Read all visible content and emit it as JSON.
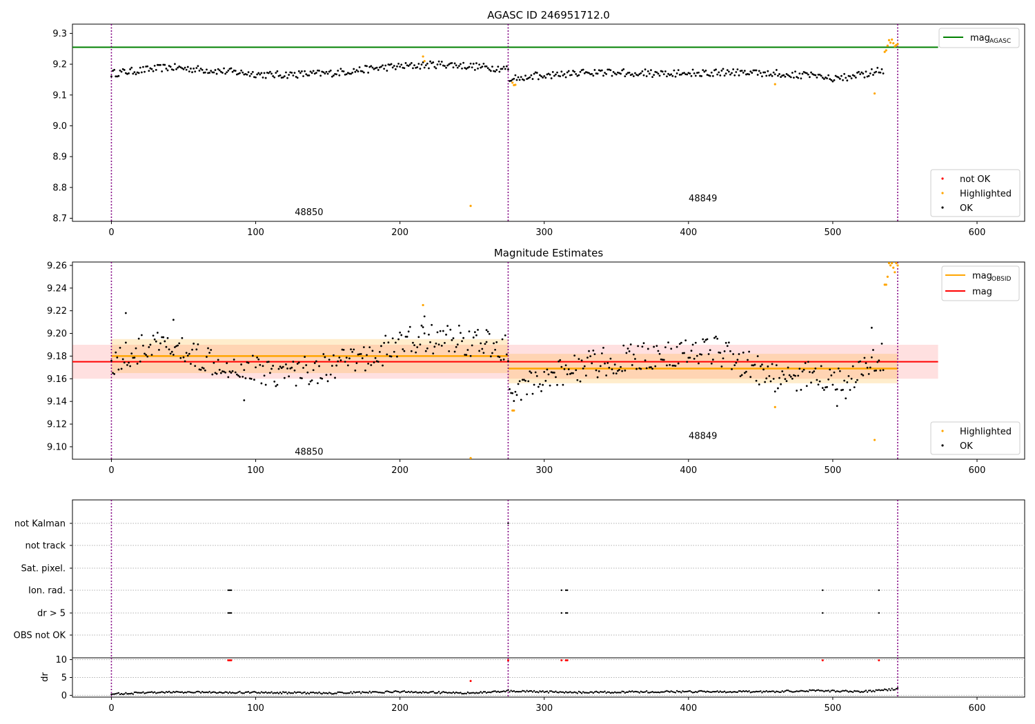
{
  "chart_data": [
    {
      "type": "scatter",
      "title": "AGASC ID 246951712.0",
      "xlim": [
        -27,
        633
      ],
      "ylim": [
        8.69,
        9.33
      ],
      "xticks": [
        0,
        100,
        200,
        300,
        400,
        500,
        600
      ],
      "xtick_labels": [
        "0",
        "100",
        "200",
        "300",
        "400",
        "500",
        "600"
      ],
      "yticks": [
        8.7,
        8.8,
        8.9,
        9.0,
        9.1,
        9.2,
        9.3
      ],
      "ytick_labels": [
        "8.7",
        "8.8",
        "8.9",
        "9.0",
        "9.1",
        "9.2",
        "9.3"
      ],
      "obsid_boundaries": [
        0,
        275,
        545
      ],
      "segment_labels": [
        {
          "text": "48850",
          "x": 137,
          "y": 8.71
        },
        {
          "text": "48849",
          "x": 410,
          "y": 8.755
        }
      ],
      "mag_agasc_line": {
        "value": 9.255,
        "x_range": [
          -27,
          573
        ],
        "color": "#008000"
      },
      "segments": [
        {
          "x_start": 0,
          "x_end": 275,
          "anchors_x": [
            0,
            40,
            70,
            110,
            150,
            190,
            230,
            275
          ],
          "anchors_y": [
            9.17,
            9.19,
            9.18,
            9.165,
            9.17,
            9.19,
            9.2,
            9.185
          ],
          "noise": 0.012
        },
        {
          "x_start": 276,
          "x_end": 535,
          "anchors_x": [
            276,
            330,
            380,
            440,
            480,
            500,
            535
          ],
          "anchors_y": [
            9.155,
            9.175,
            9.17,
            9.175,
            9.165,
            9.15,
            9.18
          ],
          "noise": 0.012
        }
      ],
      "highlighted_points": [
        [
          216,
          9.225
        ],
        [
          217,
          9.21
        ],
        [
          249,
          8.74
        ],
        [
          278,
          9.14
        ],
        [
          279,
          9.132
        ],
        [
          280,
          9.133
        ],
        [
          460,
          9.135
        ],
        [
          529,
          9.105
        ],
        [
          536,
          9.24
        ],
        [
          537,
          9.245
        ],
        [
          538,
          9.26
        ],
        [
          539,
          9.278
        ],
        [
          540,
          9.27
        ],
        [
          541,
          9.28
        ],
        [
          542,
          9.268
        ],
        [
          543,
          9.258
        ],
        [
          544,
          9.262
        ],
        [
          545,
          9.265
        ]
      ],
      "legend_lines": [
        {
          "label": "mag",
          "sub": "AGASC",
          "color": "#008000"
        }
      ],
      "legend_points": [
        {
          "label": "not OK",
          "color": "#ff0000"
        },
        {
          "label": "Highlighted",
          "color": "#ffa500"
        },
        {
          "label": "OK",
          "color": "#000000"
        }
      ]
    },
    {
      "type": "scatter",
      "title": "Magnitude Estimates",
      "xlim": [
        -27,
        633
      ],
      "ylim": [
        9.089,
        9.263
      ],
      "xticks": [
        0,
        100,
        200,
        300,
        400,
        500,
        600
      ],
      "xtick_labels": [
        "0",
        "100",
        "200",
        "300",
        "400",
        "500",
        "600"
      ],
      "yticks": [
        9.1,
        9.12,
        9.14,
        9.16,
        9.18,
        9.2,
        9.22,
        9.24,
        9.26
      ],
      "ytick_labels": [
        "9.10",
        "9.12",
        "9.14",
        "9.16",
        "9.18",
        "9.20",
        "9.22",
        "9.24",
        "9.26"
      ],
      "obsid_boundaries": [
        0,
        275,
        545
      ],
      "segment_labels": [
        {
          "text": "48850",
          "x": 137,
          "y": 9.093
        },
        {
          "text": "48849",
          "x": 410,
          "y": 9.107
        }
      ],
      "mag_line": {
        "value": 9.175,
        "band": [
          9.16,
          9.19
        ],
        "x_range": [
          -27,
          573
        ],
        "color": "#ff0000"
      },
      "mag_obsid": [
        {
          "x_start": 0,
          "x_end": 275,
          "value": 9.18,
          "band": [
            9.165,
            9.195
          ]
        },
        {
          "x_start": 275,
          "x_end": 545,
          "value": 9.169,
          "band": [
            9.156,
            9.182
          ]
        }
      ],
      "segments": [
        {
          "x_start": 0,
          "x_end": 275,
          "anchors_x": [
            0,
            30,
            60,
            90,
            120,
            150,
            180,
            210,
            240,
            275
          ],
          "anchors_y": [
            9.175,
            9.19,
            9.18,
            9.17,
            9.165,
            9.17,
            9.18,
            9.195,
            9.195,
            9.185
          ],
          "noise": 0.013
        },
        {
          "x_start": 276,
          "x_end": 535,
          "anchors_x": [
            276,
            300,
            340,
            380,
            420,
            460,
            490,
            510,
            535
          ],
          "anchors_y": [
            9.15,
            9.16,
            9.175,
            9.18,
            9.185,
            9.16,
            9.165,
            9.155,
            9.18
          ],
          "noise": 0.013
        }
      ],
      "ok_extra_points": [
        [
          10,
          9.218
        ],
        [
          43,
          9.212
        ],
        [
          92,
          9.141
        ],
        [
          217,
          9.215
        ],
        [
          260,
          9.203
        ],
        [
          527,
          9.205
        ],
        [
          503,
          9.136
        ]
      ],
      "highlighted_points": [
        [
          216,
          9.225
        ],
        [
          249,
          9.09
        ],
        [
          278,
          9.132
        ],
        [
          279,
          9.132
        ],
        [
          460,
          9.135
        ],
        [
          529,
          9.106
        ],
        [
          536,
          9.243
        ],
        [
          537,
          9.243
        ],
        [
          538,
          9.25
        ],
        [
          539,
          9.262
        ],
        [
          540,
          9.26
        ],
        [
          541,
          9.262
        ],
        [
          542,
          9.258
        ],
        [
          543,
          9.254
        ],
        [
          544,
          9.262
        ],
        [
          545,
          9.26
        ]
      ],
      "legend_lines": [
        {
          "label": "mag",
          "sub": "OBSID",
          "color": "#ffa500"
        },
        {
          "label": "mag",
          "sub": "",
          "color": "#ff0000"
        }
      ],
      "legend_points": [
        {
          "label": "Highlighted",
          "color": "#ffa500"
        },
        {
          "label": "OK",
          "color": "#000000"
        }
      ]
    },
    {
      "type": "scatter",
      "title": "",
      "xlim": [
        -27,
        633
      ],
      "categories": [
        "not Kalman",
        "not track",
        "Sat. pixel.",
        "Ion. rad.",
        "dr > 5",
        "OBS not OK"
      ],
      "flag_points": [
        {
          "category": "not Kalman",
          "x": [
            275
          ]
        },
        {
          "category": "not track",
          "x": []
        },
        {
          "category": "Sat. pixel.",
          "x": []
        },
        {
          "category": "Ion. rad.",
          "x": [
            81,
            82,
            83,
            312,
            315,
            316,
            493,
            532
          ]
        },
        {
          "category": "dr > 5",
          "x": [
            81,
            82,
            83,
            312,
            315,
            316,
            493,
            532
          ]
        },
        {
          "category": "OBS not OK",
          "x": []
        }
      ],
      "obsid_boundaries": [
        0,
        275,
        545
      ]
    },
    {
      "type": "scatter",
      "ylabel": "dr",
      "xlim": [
        -27,
        633
      ],
      "ylim": [
        -0.5,
        10.5
      ],
      "xticks": [
        0,
        100,
        200,
        300,
        400,
        500,
        600
      ],
      "xtick_labels": [
        "0",
        "100",
        "200",
        "300",
        "400",
        "500",
        "600"
      ],
      "yticks": [
        0,
        5,
        10
      ],
      "ytick_labels": [
        "0",
        "5",
        "10"
      ],
      "obsid_boundaries": [
        0,
        275,
        545
      ],
      "segments": [
        {
          "x_start": 0,
          "x_end": 545,
          "anchors_x": [
            0,
            30,
            60,
            100,
            150,
            200,
            250,
            275,
            320,
            380,
            450,
            490,
            520,
            545
          ],
          "anchors_y": [
            0.4,
            0.8,
            0.9,
            0.8,
            0.6,
            1.0,
            0.6,
            1.2,
            0.8,
            1.0,
            1.0,
            1.3,
            1.0,
            1.8
          ],
          "noise": 0.25
        }
      ],
      "not_ok_points": [
        [
          81,
          9.8
        ],
        [
          82,
          9.8
        ],
        [
          83,
          9.8
        ],
        [
          249,
          4.0
        ],
        [
          275,
          9.8
        ],
        [
          312,
          9.8
        ],
        [
          315,
          9.8
        ],
        [
          316,
          9.8
        ],
        [
          493,
          9.8
        ],
        [
          532,
          9.8
        ]
      ]
    }
  ]
}
